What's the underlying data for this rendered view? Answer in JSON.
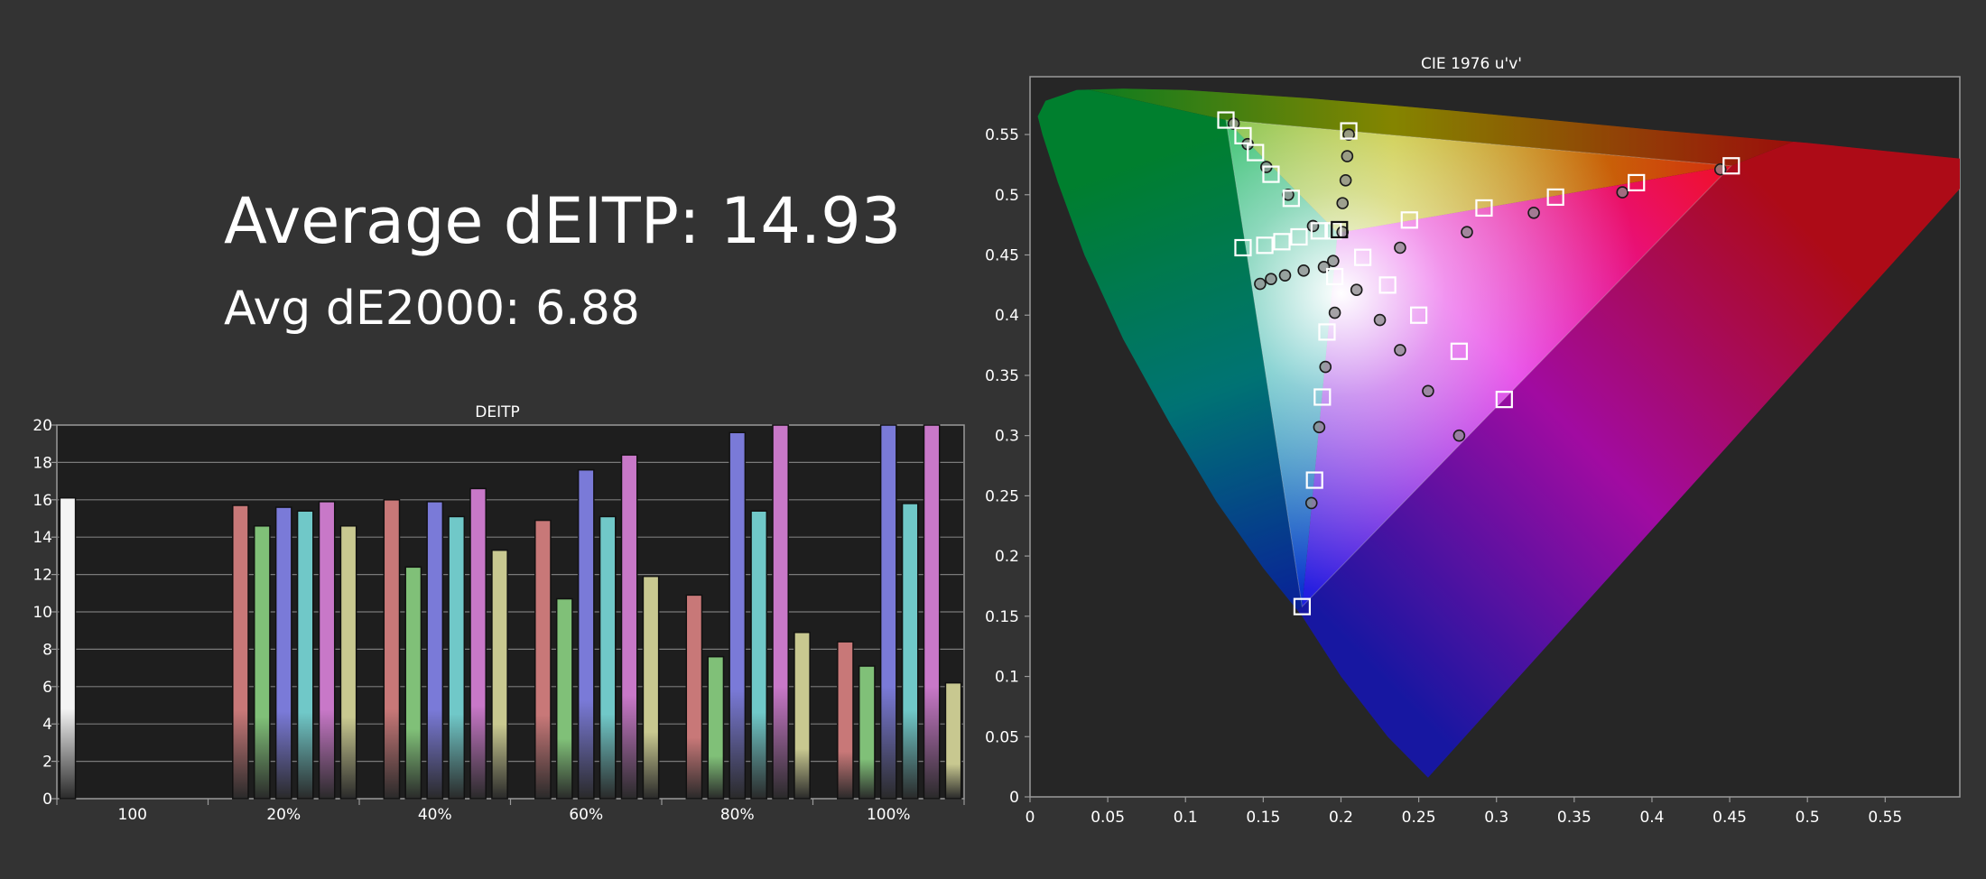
{
  "summary": {
    "headline_label": "Average dEITP:",
    "headline_value": "14.93",
    "sub_label": "Avg dE2000:",
    "sub_value": "6.88"
  },
  "chart_data": [
    {
      "type": "bar",
      "title": "DEITP",
      "categories": [
        "100",
        "20%",
        "40%",
        "60%",
        "80%",
        "100%"
      ],
      "ylim": [
        0,
        20
      ],
      "yticks": [
        0,
        2,
        4,
        6,
        8,
        10,
        12,
        14,
        16,
        18,
        20
      ],
      "grid": true,
      "series": [
        {
          "color": "#f4f4f4",
          "values": [
            16.1,
            null,
            null,
            null,
            null,
            null
          ]
        },
        {
          "color": "#c87878",
          "values": [
            null,
            15.7,
            16.0,
            14.9,
            10.9,
            8.4
          ]
        },
        {
          "color": "#80c078",
          "values": [
            null,
            14.6,
            12.4,
            10.7,
            7.6,
            7.1
          ]
        },
        {
          "color": "#7a7ad8",
          "values": [
            null,
            15.6,
            15.9,
            17.6,
            19.6,
            20.0
          ]
        },
        {
          "color": "#70c8c8",
          "values": [
            null,
            15.4,
            15.1,
            15.1,
            15.4,
            15.8
          ]
        },
        {
          "color": "#c878c8",
          "values": [
            null,
            15.9,
            16.6,
            18.4,
            20.0,
            20.0
          ]
        },
        {
          "color": "#c8c890",
          "values": [
            null,
            14.6,
            13.3,
            11.9,
            8.9,
            6.2
          ]
        }
      ]
    },
    {
      "type": "scatter",
      "title": "CIE 1976 u'v'",
      "xlim": [
        0,
        0.6
      ],
      "ylim": [
        0,
        0.6
      ],
      "xticks": [
        "0",
        "0.05",
        "0.1",
        "0.15",
        "0.2",
        "0.25",
        "0.3",
        "0.35",
        "0.4",
        "0.45",
        "0.5",
        "0.55"
      ],
      "yticks": [
        "0",
        "0.05",
        "0.1",
        "0.15",
        "0.2",
        "0.25",
        "0.3",
        "0.35",
        "0.4",
        "0.45",
        "0.5",
        "0.55"
      ],
      "gamut_triangle": [
        [
          0.126,
          0.562
        ],
        [
          0.451,
          0.524
        ],
        [
          0.175,
          0.158
        ]
      ],
      "targets": [
        [
          0.126,
          0.562
        ],
        [
          0.137,
          0.549
        ],
        [
          0.145,
          0.535
        ],
        [
          0.155,
          0.517
        ],
        [
          0.168,
          0.497
        ],
        [
          0.186,
          0.47
        ],
        [
          0.205,
          0.553
        ],
        [
          0.451,
          0.524
        ],
        [
          0.39,
          0.51
        ],
        [
          0.338,
          0.498
        ],
        [
          0.292,
          0.489
        ],
        [
          0.244,
          0.479
        ],
        [
          0.137,
          0.456
        ],
        [
          0.151,
          0.458
        ],
        [
          0.162,
          0.461
        ],
        [
          0.173,
          0.465
        ],
        [
          0.195,
          0.47
        ],
        [
          0.214,
          0.448
        ],
        [
          0.196,
          0.432
        ],
        [
          0.23,
          0.425
        ],
        [
          0.25,
          0.4
        ],
        [
          0.276,
          0.37
        ],
        [
          0.305,
          0.33
        ],
        [
          0.191,
          0.386
        ],
        [
          0.188,
          0.332
        ],
        [
          0.183,
          0.263
        ],
        [
          0.175,
          0.158
        ],
        [
          0.199,
          0.471
        ]
      ],
      "measured": [
        [
          0.131,
          0.559
        ],
        [
          0.14,
          0.542
        ],
        [
          0.152,
          0.523
        ],
        [
          0.166,
          0.5
        ],
        [
          0.182,
          0.474
        ],
        [
          0.205,
          0.55
        ],
        [
          0.204,
          0.532
        ],
        [
          0.203,
          0.512
        ],
        [
          0.201,
          0.493
        ],
        [
          0.201,
          0.469
        ],
        [
          0.444,
          0.521
        ],
        [
          0.381,
          0.502
        ],
        [
          0.324,
          0.485
        ],
        [
          0.281,
          0.469
        ],
        [
          0.238,
          0.456
        ],
        [
          0.148,
          0.426
        ],
        [
          0.155,
          0.43
        ],
        [
          0.164,
          0.433
        ],
        [
          0.176,
          0.437
        ],
        [
          0.189,
          0.44
        ],
        [
          0.195,
          0.445
        ],
        [
          0.21,
          0.421
        ],
        [
          0.225,
          0.396
        ],
        [
          0.238,
          0.371
        ],
        [
          0.256,
          0.337
        ],
        [
          0.276,
          0.3
        ],
        [
          0.196,
          0.402
        ],
        [
          0.19,
          0.357
        ],
        [
          0.186,
          0.307
        ],
        [
          0.181,
          0.244
        ]
      ]
    }
  ]
}
